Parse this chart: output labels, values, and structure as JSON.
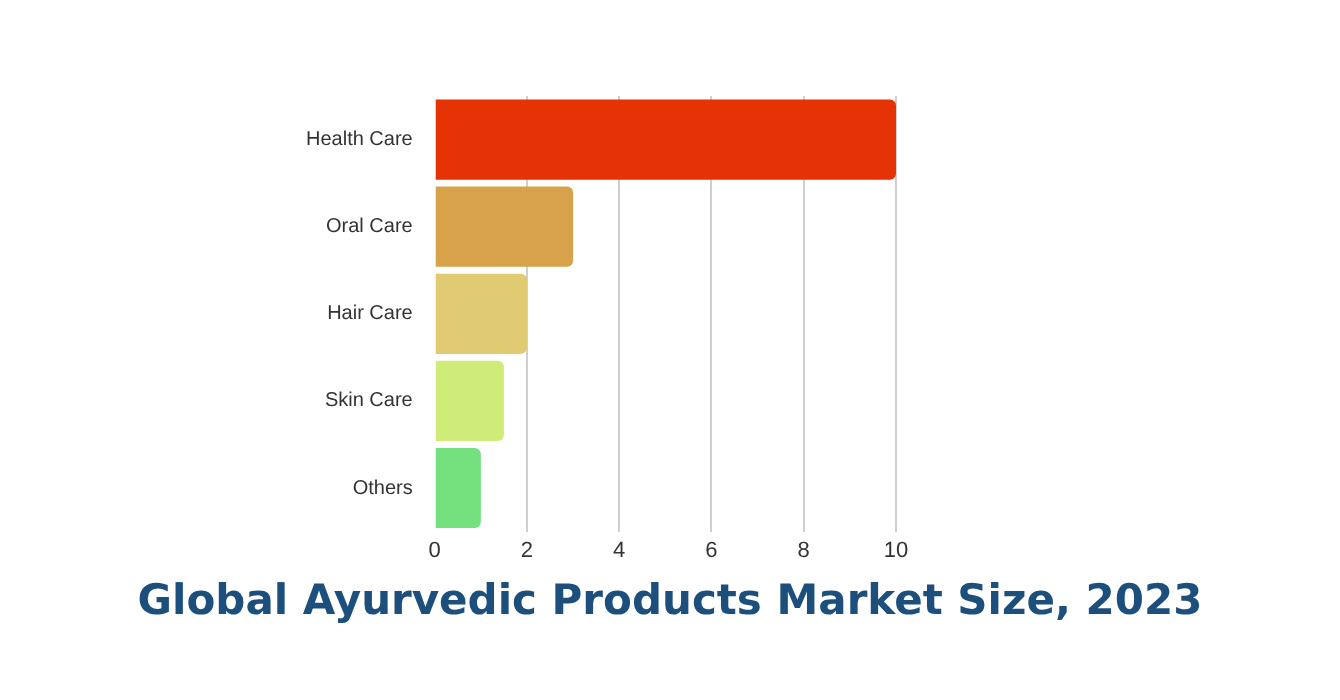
{
  "chart_data": {
    "type": "bar",
    "orientation": "horizontal",
    "title": "Global Ayurvedic Products Market Size, 2023",
    "categories": [
      "Health Care",
      "Oral Care",
      "Hair Care",
      "Skin Care",
      "Others"
    ],
    "values": [
      10,
      3,
      2,
      1.5,
      1
    ],
    "colors": [
      "#e63305",
      "#d8a24a",
      "#e0cb72",
      "#cfec78",
      "#75e07e"
    ],
    "xlim": [
      0,
      10
    ],
    "xticks": [
      0,
      2,
      4,
      6,
      8,
      10
    ],
    "grid": "x",
    "legend": false
  }
}
